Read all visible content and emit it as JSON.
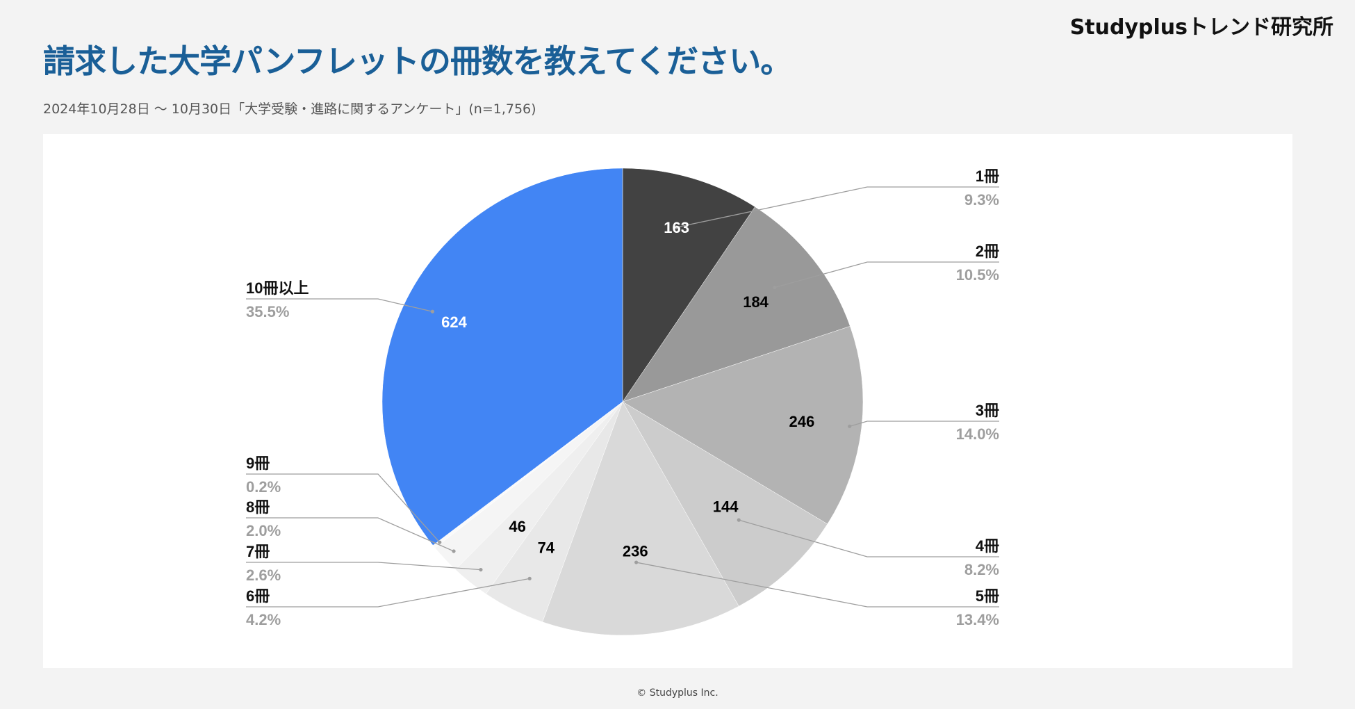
{
  "brand": "Studyplusトレンド研究所",
  "title": "請求した大学パンフレットの冊数を教えてください。",
  "subtitle": "2024年10月28日 〜 10月30日「大学受験・進路に関するアンケート」(n=1,756)",
  "footer": "© Studyplus Inc.",
  "chart_data": {
    "type": "pie",
    "start_angle_deg": 0,
    "direction": "clockwise",
    "slices": [
      {
        "label": "1冊",
        "value": 163,
        "percent": "9.3%",
        "color": "#424242",
        "value_text_color": "#ffffff"
      },
      {
        "label": "2冊",
        "value": 184,
        "percent": "10.5%",
        "color": "#999999",
        "value_text_color": "#000000"
      },
      {
        "label": "3冊",
        "value": 246,
        "percent": "14.0%",
        "color": "#b3b3b3",
        "value_text_color": "#000000"
      },
      {
        "label": "4冊",
        "value": 144,
        "percent": "8.2%",
        "color": "#cccccc",
        "value_text_color": "#000000"
      },
      {
        "label": "5冊",
        "value": 236,
        "percent": "13.4%",
        "color": "#d9d9d9",
        "value_text_color": "#000000"
      },
      {
        "label": "6冊",
        "value": 74,
        "percent": "4.2%",
        "color": "#e8e8e8",
        "value_text_color": "#000000"
      },
      {
        "label": "7冊",
        "value": 46,
        "percent": "2.6%",
        "color": "#efefef",
        "value_text_color": "#000000"
      },
      {
        "label": "8冊",
        "value": 35,
        "percent": "2.0%",
        "color": "#f5f5f5",
        "value_text_color": "#000000"
      },
      {
        "label": "9冊",
        "value": 4,
        "percent": "0.2%",
        "color": "#fafafa",
        "value_text_color": "#000000"
      },
      {
        "label": "10冊以上",
        "value": 624,
        "percent": "35.5%",
        "color": "#4285f4",
        "value_text_color": "#ffffff"
      }
    ],
    "value_labels_shown": [
      "163",
      "184",
      "246",
      "144",
      "236",
      "74",
      "46",
      "624"
    ],
    "label_color": "#111111",
    "percent_color": "#9e9e9e",
    "leader_color": "#9e9e9e"
  }
}
